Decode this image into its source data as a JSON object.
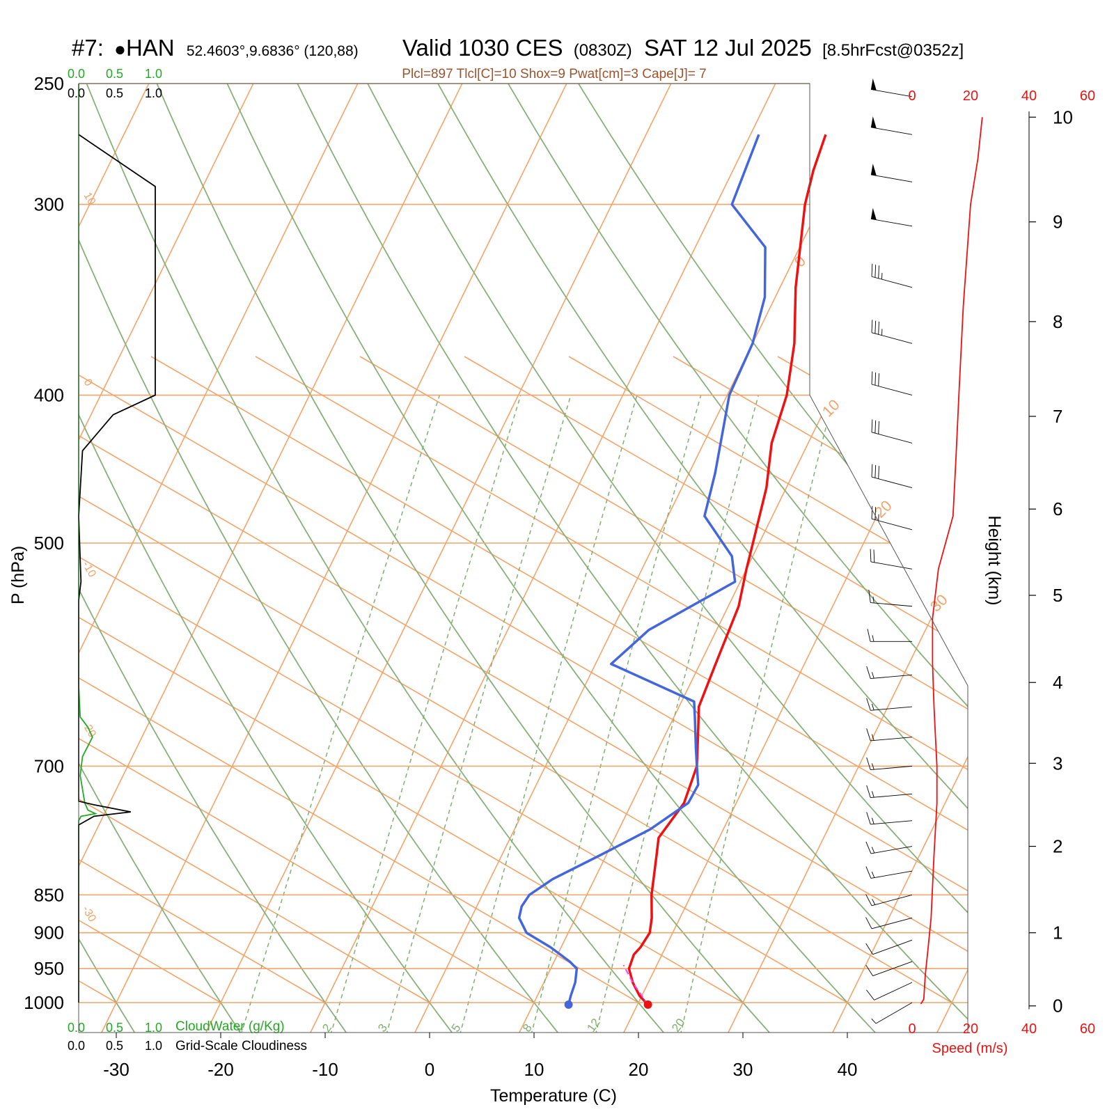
{
  "header": {
    "station_id": "#7:",
    "station_marker": "●",
    "station_name": "HAN",
    "coords": "52.4603°,9.6836° (120,88)",
    "valid": "Valid 1030 CES",
    "zulu": "(0830Z)",
    "date": "SAT 12 Jul 2025",
    "forecast": "[8.5hrFcst@0352z]",
    "params": "Plcl=897 Tlcl[C]=10 Shox=9 Pwat[cm]=3 Cape[J]= 7"
  },
  "colors": {
    "temperature": "#ee1111",
    "dewpoint": "#4466dd",
    "isotherm": "#f4a46a",
    "dry_adiabat": "#88b07a",
    "mixing_ratio": "#7fb070",
    "cloud_water": "#22aa22",
    "cloudiness": "#000000",
    "wind_speed": "#ee1111",
    "parcel": "#ff44ff",
    "param_text": "#a0522d"
  },
  "chart_data": {
    "type": "skew-t",
    "xlabel": "Temperature (C)",
    "ylabel": "P (hPa)",
    "y2label": "Height (km)",
    "x_ticks": [
      -30,
      -20,
      -10,
      0,
      10,
      20,
      30,
      40
    ],
    "x_tick_labels": [
      "-30",
      "-20",
      "-10",
      "0",
      "10",
      "20",
      "30",
      "40"
    ],
    "p_ticks": [
      250,
      300,
      400,
      500,
      700,
      850,
      900,
      950,
      1000
    ],
    "p_tick_labels": [
      "250",
      "300",
      "400",
      "500",
      "700",
      "850",
      "900",
      "950",
      "1000"
    ],
    "height_ticks": [
      0,
      1,
      2,
      3,
      4,
      5,
      6,
      7,
      8,
      9,
      10
    ],
    "height_tick_labels": [
      "0",
      "1",
      "2",
      "3",
      "4",
      "5",
      "6",
      "7",
      "8",
      "9",
      "10"
    ],
    "height_tick_pressure": [
      1005,
      900,
      790,
      697,
      617,
      541,
      475,
      413,
      358,
      308,
      263
    ],
    "isotherm_labels": [
      {
        "text": "10",
        "t": 10,
        "p": 285
      },
      {
        "text": "0",
        "t": 0,
        "p": 390
      },
      {
        "text": "-10",
        "t": -10,
        "p": 505
      },
      {
        "text": "-20",
        "t": -20,
        "p": 660
      },
      {
        "text": "-30",
        "t": -30,
        "p": 880
      },
      {
        "text": "0",
        "t": 35,
        "p": 345
      },
      {
        "text": "10",
        "t": 35,
        "p": 418
      },
      {
        "text": "20",
        "t": 35,
        "p": 488
      },
      {
        "text": "30",
        "t": 35,
        "p": 548
      }
    ],
    "mixing_ratio_labels": [
      "1",
      "2",
      "3",
      "5",
      "8",
      "12",
      "20"
    ],
    "mixing_ratio_values": [
      1,
      2,
      3,
      5,
      8,
      12,
      20
    ],
    "temperature_profile": [
      [
        1003,
        21.0
      ],
      [
        990,
        19.8
      ],
      [
        970,
        18.5
      ],
      [
        950,
        17.5
      ],
      [
        930,
        17.3
      ],
      [
        920,
        17.6
      ],
      [
        900,
        17.8
      ],
      [
        880,
        17.3
      ],
      [
        850,
        16.2
      ],
      [
        800,
        14.8
      ],
      [
        780,
        14.2
      ],
      [
        760,
        14.6
      ],
      [
        740,
        15.0
      ],
      [
        700,
        14.5
      ],
      [
        660,
        12.8
      ],
      [
        640,
        11.9
      ],
      [
        600,
        11.5
      ],
      [
        550,
        11.0
      ],
      [
        520,
        10.0
      ],
      [
        500,
        9.4
      ],
      [
        460,
        8.1
      ],
      [
        430,
        6.5
      ],
      [
        400,
        5.7
      ],
      [
        370,
        4.0
      ],
      [
        340,
        1.5
      ],
      [
        300,
        -1.5
      ],
      [
        285,
        -2.3
      ],
      [
        270,
        -2.8
      ]
    ],
    "dewpoint_profile": [
      [
        1003,
        13.4
      ],
      [
        990,
        13.2
      ],
      [
        970,
        13.0
      ],
      [
        950,
        12.5
      ],
      [
        940,
        11.5
      ],
      [
        920,
        9.0
      ],
      [
        900,
        6.0
      ],
      [
        880,
        4.6
      ],
      [
        865,
        4.3
      ],
      [
        850,
        4.5
      ],
      [
        830,
        6.0
      ],
      [
        800,
        9.5
      ],
      [
        770,
        13.0
      ],
      [
        740,
        15.4
      ],
      [
        720,
        15.5
      ],
      [
        700,
        14.5
      ],
      [
        680,
        13.5
      ],
      [
        650,
        12.0
      ],
      [
        635,
        11.2
      ],
      [
        600,
        1.5
      ],
      [
        570,
        3.5
      ],
      [
        530,
        9.5
      ],
      [
        510,
        8.0
      ],
      [
        480,
        3.5
      ],
      [
        450,
        2.5
      ],
      [
        400,
        0.2
      ],
      [
        370,
        0.0
      ],
      [
        345,
        -1.0
      ],
      [
        320,
        -3.3
      ],
      [
        300,
        -8.5
      ],
      [
        270,
        -9.2
      ]
    ],
    "parcel_profile": [
      [
        1003,
        21.0
      ],
      [
        970,
        18.5
      ],
      [
        945,
        16.8
      ]
    ],
    "cloud_water_gkg": [
      [
        1000,
        0.0
      ],
      [
        860,
        0.0
      ],
      [
        760,
        0.0
      ],
      [
        755,
        0.03
      ],
      [
        752,
        0.22
      ],
      [
        748,
        0.12
      ],
      [
        740,
        0.08
      ],
      [
        710,
        0.02
      ],
      [
        690,
        0.05
      ],
      [
        670,
        0.18
      ],
      [
        660,
        0.12
      ],
      [
        650,
        0.02
      ],
      [
        620,
        0.0
      ],
      [
        250,
        0.0
      ]
    ],
    "cloudiness_fraction": [
      [
        1000,
        0.0
      ],
      [
        765,
        0.0
      ],
      [
        755,
        0.2
      ],
      [
        750,
        0.68
      ],
      [
        742,
        0.2
      ],
      [
        738,
        0.0
      ],
      [
        545,
        0.0
      ],
      [
        530,
        0.03
      ],
      [
        480,
        0.0
      ],
      [
        435,
        0.05
      ],
      [
        412,
        0.45
      ],
      [
        400,
        1.0
      ],
      [
        300,
        1.0
      ],
      [
        292,
        1.0
      ],
      [
        270,
        0.0
      ]
    ],
    "wind_speed_profile": [
      [
        1002,
        3
      ],
      [
        995,
        4
      ],
      [
        960,
        4.5
      ],
      [
        920,
        5.5
      ],
      [
        880,
        6.5
      ],
      [
        800,
        7.5
      ],
      [
        740,
        8.5
      ],
      [
        700,
        8.5
      ],
      [
        670,
        8.0
      ],
      [
        640,
        7.5
      ],
      [
        600,
        7.0
      ],
      [
        560,
        7.0
      ],
      [
        520,
        9.0
      ],
      [
        480,
        14.0
      ],
      [
        440,
        15.0
      ],
      [
        400,
        16.0
      ],
      [
        350,
        17.5
      ],
      [
        300,
        20.0
      ],
      [
        280,
        22.5
      ],
      [
        263,
        24.0
      ]
    ],
    "wind_speed_axis": {
      "min": 0,
      "max": 60,
      "ticks": [
        "0",
        "20",
        "40",
        "60"
      ],
      "label": "Speed (m/s)"
    },
    "wind_barbs": [
      {
        "p": 1000,
        "dir": 240,
        "kts": 6
      },
      {
        "p": 970,
        "dir": 245,
        "kts": 8
      },
      {
        "p": 940,
        "dir": 250,
        "kts": 9
      },
      {
        "p": 910,
        "dir": 250,
        "kts": 10
      },
      {
        "p": 880,
        "dir": 255,
        "kts": 12
      },
      {
        "p": 850,
        "dir": 255,
        "kts": 13
      },
      {
        "p": 820,
        "dir": 260,
        "kts": 14
      },
      {
        "p": 790,
        "dir": 260,
        "kts": 15
      },
      {
        "p": 760,
        "dir": 265,
        "kts": 16
      },
      {
        "p": 730,
        "dir": 265,
        "kts": 16
      },
      {
        "p": 700,
        "dir": 265,
        "kts": 16
      },
      {
        "p": 670,
        "dir": 265,
        "kts": 15
      },
      {
        "p": 640,
        "dir": 265,
        "kts": 14
      },
      {
        "p": 610,
        "dir": 265,
        "kts": 13
      },
      {
        "p": 580,
        "dir": 270,
        "kts": 13
      },
      {
        "p": 550,
        "dir": 275,
        "kts": 14
      },
      {
        "p": 520,
        "dir": 280,
        "kts": 18
      },
      {
        "p": 490,
        "dir": 285,
        "kts": 24
      },
      {
        "p": 460,
        "dir": 285,
        "kts": 28
      },
      {
        "p": 430,
        "dir": 285,
        "kts": 30
      },
      {
        "p": 400,
        "dir": 285,
        "kts": 32
      },
      {
        "p": 370,
        "dir": 285,
        "kts": 34
      },
      {
        "p": 340,
        "dir": 285,
        "kts": 36
      },
      {
        "p": 310,
        "dir": 280,
        "kts": 50
      },
      {
        "p": 290,
        "dir": 280,
        "kts": 50
      },
      {
        "p": 270,
        "dir": 280,
        "kts": 52
      },
      {
        "p": 255,
        "dir": 280,
        "kts": 52
      }
    ]
  },
  "legend": {
    "cloud_water_label": "CloudWater (g/Kg)",
    "cloudiness_label": "Grid-Scale Cloudiness",
    "scale_ticks": [
      "0.0",
      "0.5",
      "1.0"
    ]
  }
}
